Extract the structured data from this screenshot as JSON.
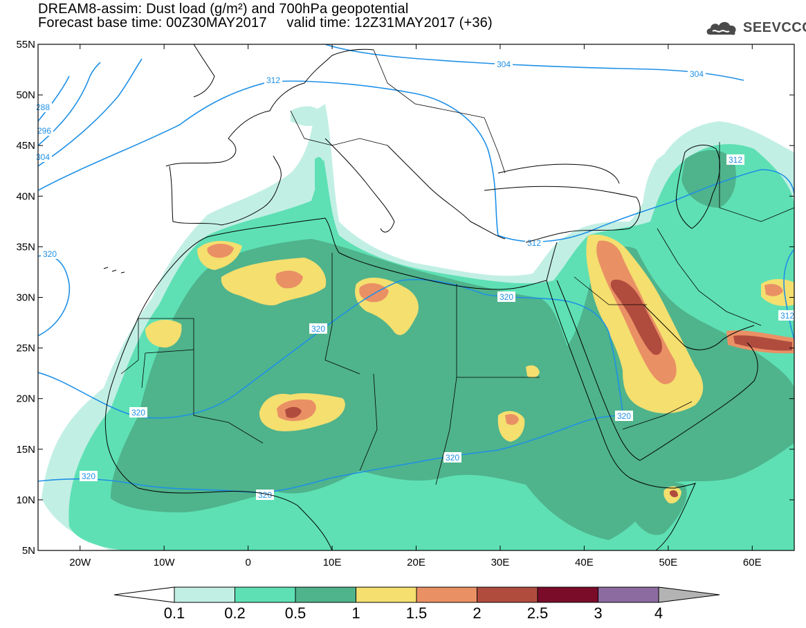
{
  "title": {
    "line1": "DREAM8-assim: Dust load (g/m²) and 700hPa geopotential",
    "line2": "Forecast base time: 00Z30MAY2017     valid time: 12Z31MAY2017 (+36)"
  },
  "logo": {
    "text": "SEEVCCC",
    "icon": "cloud-logo-icon"
  },
  "map": {
    "lon_range": [
      -25,
      65
    ],
    "lat_range": [
      5,
      55
    ],
    "lat_ticks": [
      "55N",
      "50N",
      "45N",
      "40N",
      "35N",
      "30N",
      "25N",
      "20N",
      "15N",
      "10N",
      "5N"
    ],
    "lon_ticks": [
      "20W",
      "10W",
      "0",
      "10E",
      "20E",
      "30E",
      "40E",
      "50E",
      "60E"
    ],
    "contour_labels": [
      "304",
      "304",
      "312",
      "288",
      "296",
      "304",
      "312",
      "312",
      "320",
      "320",
      "320",
      "320",
      "320",
      "320",
      "320",
      "320",
      "312"
    ],
    "colors": {
      "land_outline": "#000000",
      "contour": "#1e90e6",
      "background": "#ffffff"
    }
  },
  "colorbar": {
    "labels": [
      "0.1",
      "0.2",
      "0.5",
      "1",
      "1.5",
      "2",
      "2.5",
      "3",
      "4"
    ],
    "colors": [
      "#c2efe4",
      "#5ee0b4",
      "#4fb38c",
      "#f4df6f",
      "#ea9065",
      "#b04c3e",
      "#7a0c2a",
      "#8c6ba0"
    ],
    "under_color": "#ffffff",
    "over_color": "#b3b3b3"
  }
}
